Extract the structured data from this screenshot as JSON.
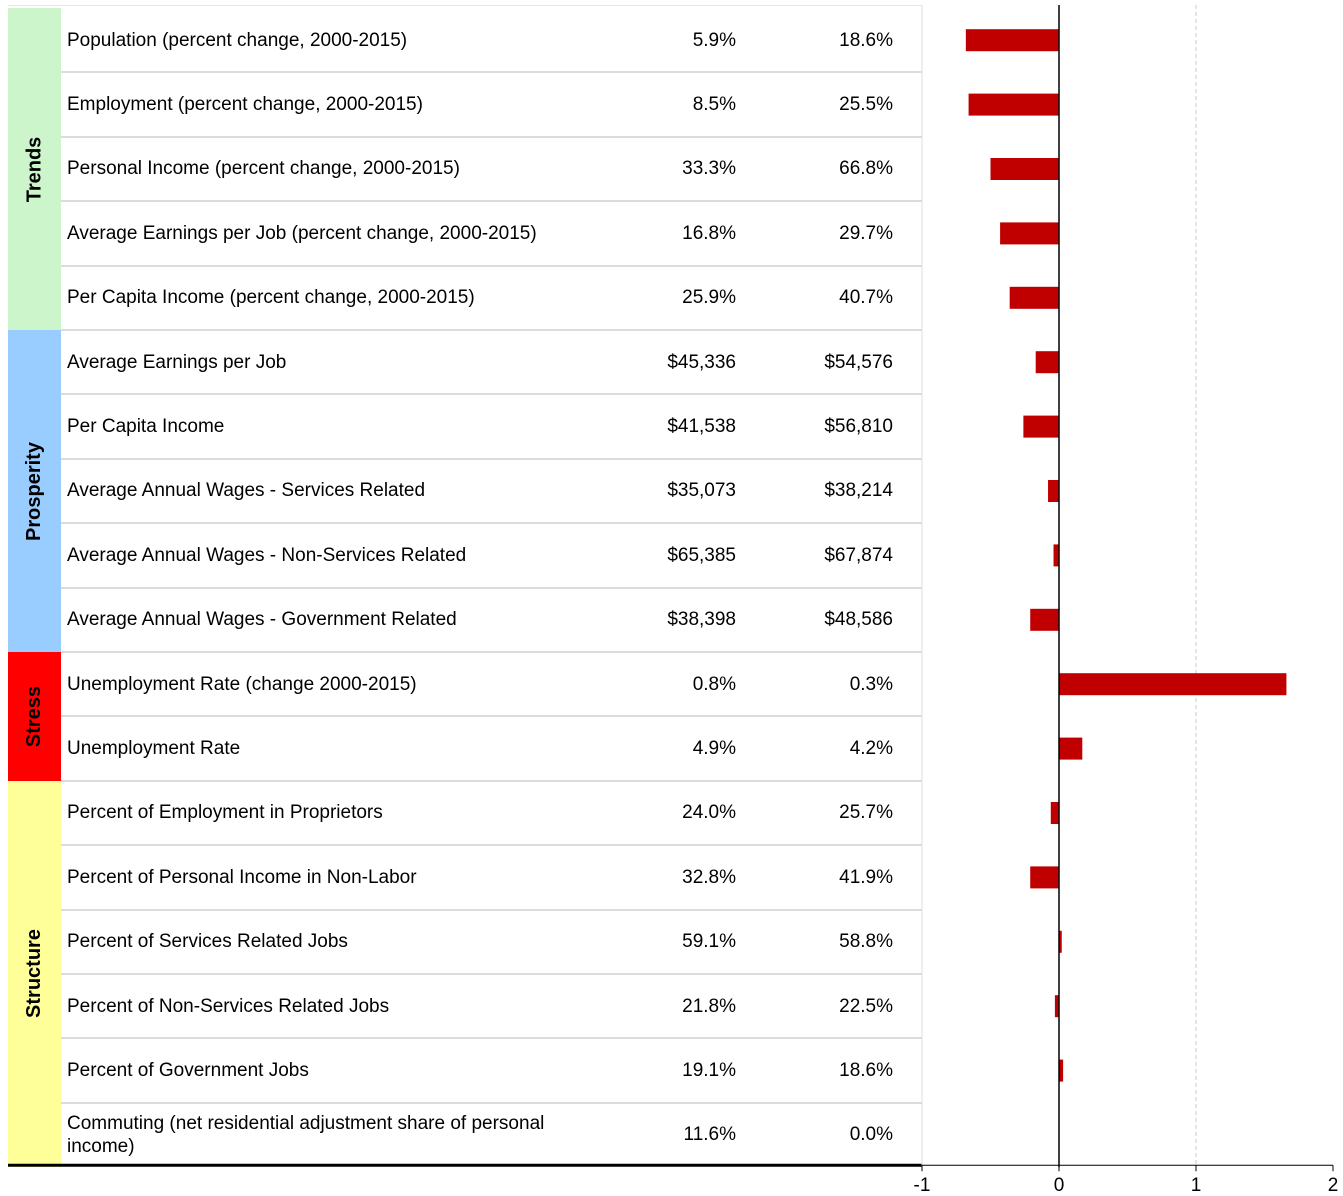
{
  "table": {
    "groups": [
      {
        "name": "Trends",
        "color": "#ccf5cc",
        "rows": [
          {
            "label": "Population (percent change, 2000-2015)",
            "col1": "5.9%",
            "col2": "18.6%"
          },
          {
            "label": "Employment (percent change, 2000-2015)",
            "col1": "8.5%",
            "col2": "25.5%"
          },
          {
            "label": "Personal Income (percent change, 2000-2015)",
            "col1": "33.3%",
            "col2": "66.8%"
          },
          {
            "label": "Average Earnings per Job (percent change, 2000-2015)",
            "col1": "16.8%",
            "col2": "29.7%"
          },
          {
            "label": "Per Capita Income (percent change, 2000-2015)",
            "col1": "25.9%",
            "col2": "40.7%"
          }
        ]
      },
      {
        "name": "Prosperity",
        "color": "#99ccff",
        "rows": [
          {
            "label": "Average Earnings per Job",
            "col1": "$45,336",
            "col2": "$54,576"
          },
          {
            "label": "Per Capita Income",
            "col1": "$41,538",
            "col2": "$56,810"
          },
          {
            "label": "Average Annual Wages - Services Related",
            "col1": "$35,073",
            "col2": "$38,214"
          },
          {
            "label": "Average Annual Wages - Non-Services Related",
            "col1": "$65,385",
            "col2": "$67,874"
          },
          {
            "label": "Average Annual Wages - Government Related",
            "col1": "$38,398",
            "col2": "$48,586"
          }
        ]
      },
      {
        "name": "Stress",
        "color": "#ff0000",
        "rows": [
          {
            "label": "Unemployment Rate (change 2000-2015)",
            "col1": "0.8%",
            "col2": "0.3%"
          },
          {
            "label": "Unemployment Rate",
            "col1": "4.9%",
            "col2": "4.2%"
          }
        ]
      },
      {
        "name": "Structure",
        "color": "#ffff99",
        "rows": [
          {
            "label": "Percent of Employment in Proprietors",
            "col1": "24.0%",
            "col2": "25.7%"
          },
          {
            "label": "Percent of Personal Income in Non-Labor",
            "col1": "32.8%",
            "col2": "41.9%"
          },
          {
            "label": "Percent of Services Related Jobs",
            "col1": "59.1%",
            "col2": "58.8%"
          },
          {
            "label": "Percent of Non-Services Related Jobs",
            "col1": "21.8%",
            "col2": "22.5%"
          },
          {
            "label": "Percent of Government Jobs",
            "col1": "19.1%",
            "col2": "18.6%"
          },
          {
            "label": "Commuting (net residential adjustment share of personal income)",
            "col1": "11.6%",
            "col2": "0.0%"
          }
        ]
      }
    ]
  },
  "chart_data": {
    "type": "bar",
    "orientation": "horizontal",
    "color": "#c00000",
    "values": [
      -0.68,
      -0.66,
      -0.5,
      -0.43,
      -0.36,
      -0.17,
      -0.26,
      -0.08,
      -0.04,
      -0.21,
      1.66,
      0.17,
      -0.06,
      -0.21,
      0.02,
      -0.03,
      0.03,
      0
    ],
    "xlim": [
      -1,
      2
    ],
    "xticks": [
      -1,
      0,
      1,
      2
    ],
    "grid": true
  }
}
